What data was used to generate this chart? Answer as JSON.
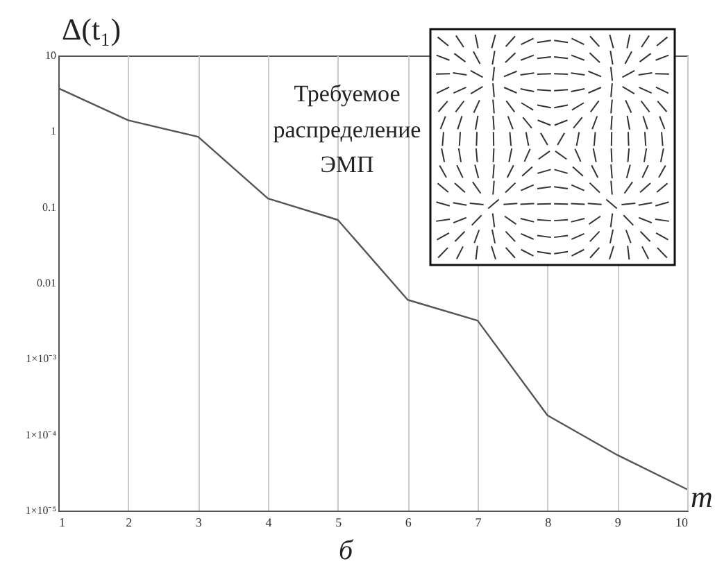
{
  "chart_data": {
    "type": "line",
    "xlabel": "m",
    "ylabel": "Δ(t₁)",
    "x": [
      1,
      2,
      3,
      4,
      5,
      6,
      7,
      8,
      9,
      10
    ],
    "series": [
      {
        "color": "#555555",
        "values": [
          3.7,
          1.4,
          0.85,
          0.13,
          0.068,
          0.006,
          0.0032,
          0.00018,
          5.4e-05,
          1.9e-05
        ]
      }
    ],
    "xlim": [
      1,
      10
    ],
    "xticks": [
      1,
      2,
      3,
      4,
      5,
      6,
      7,
      8,
      9,
      10
    ],
    "ylim": [
      1e-05,
      10
    ],
    "yticks": [
      {
        "value": 1e-05,
        "label": "1×10⁻⁵"
      },
      {
        "value": 0.0001,
        "label": "1×10⁻⁴"
      },
      {
        "value": 0.001,
        "label": "1×10⁻³"
      },
      0.01,
      0.1,
      1,
      10
    ],
    "log": "y",
    "grid": "x",
    "marker": "none",
    "line_style": "solid",
    "legend": false,
    "annotations": [
      "Требуемое распределение ЭМП",
      "б"
    ]
  }
}
